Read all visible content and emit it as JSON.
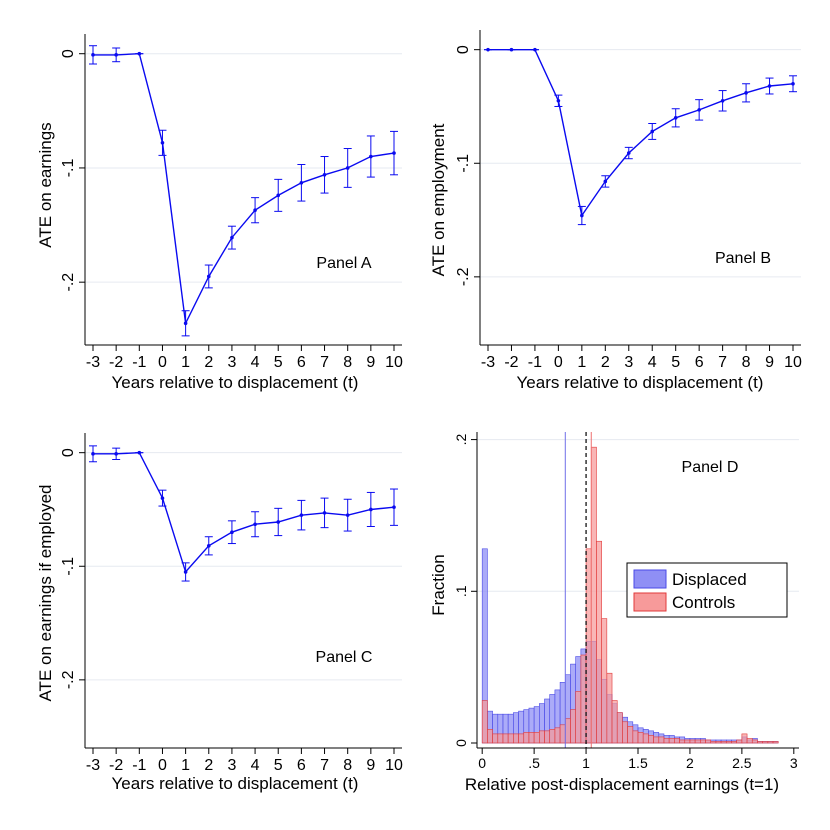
{
  "colors": {
    "series": "#0a0af0",
    "grid": "#e6eaf0",
    "displaced_fill": "#8f8ff5",
    "displaced_stroke": "#4a4ae6",
    "controls_fill": "#f79a9a",
    "controls_stroke": "#e23a3a",
    "vline_displaced": "#7070e8",
    "vline_controls": "#ee7070"
  },
  "chart_data": [
    {
      "type": "line",
      "panel_label": "Panel A",
      "ylabel": "ATE on earnings",
      "xlabel": "Years relative to displacement (t)",
      "x": [
        -3,
        -2,
        -1,
        0,
        1,
        2,
        3,
        4,
        5,
        6,
        7,
        8,
        9,
        10
      ],
      "x_tick_labels": [
        "-3",
        "-2",
        "-1",
        "0",
        "1",
        "2",
        "3",
        "4",
        "5",
        "6",
        "7",
        "8",
        "9",
        "10"
      ],
      "y": [
        -0.001,
        -0.001,
        0.0,
        -0.078,
        -0.236,
        -0.195,
        -0.161,
        -0.137,
        -0.124,
        -0.113,
        -0.106,
        -0.1,
        -0.09,
        -0.087
      ],
      "ci_low": [
        -0.009,
        -0.007,
        0.0,
        -0.089,
        -0.247,
        -0.205,
        -0.171,
        -0.148,
        -0.138,
        -0.129,
        -0.122,
        -0.117,
        -0.108,
        -0.106
      ],
      "ci_high": [
        0.007,
        0.005,
        0.0,
        -0.067,
        -0.225,
        -0.185,
        -0.151,
        -0.126,
        -0.11,
        -0.097,
        -0.09,
        -0.083,
        -0.072,
        -0.068
      ],
      "y_ticks": [
        0,
        -0.1,
        -0.2
      ],
      "y_tick_labels": [
        "0",
        "-.1",
        "-.2"
      ],
      "ylim": [
        -0.255,
        0.005
      ]
    },
    {
      "type": "line",
      "panel_label": "Panel B",
      "ylabel": "ATE on employment",
      "xlabel": "Years relative to displacement (t)",
      "x": [
        -3,
        -2,
        -1,
        0,
        1,
        2,
        3,
        4,
        5,
        6,
        7,
        8,
        9,
        10
      ],
      "x_tick_labels": [
        "-3",
        "-2",
        "-1",
        "0",
        "1",
        "2",
        "3",
        "4",
        "5",
        "6",
        "7",
        "8",
        "9",
        "10"
      ],
      "y": [
        0.0,
        0.0,
        0.0,
        -0.045,
        -0.146,
        -0.116,
        -0.091,
        -0.072,
        -0.06,
        -0.053,
        -0.045,
        -0.038,
        -0.032,
        -0.03
      ],
      "ci_low": [
        0.0,
        0.0,
        0.0,
        -0.05,
        -0.154,
        -0.121,
        -0.096,
        -0.079,
        -0.068,
        -0.062,
        -0.054,
        -0.046,
        -0.039,
        -0.037
      ],
      "ci_high": [
        0.0,
        0.0,
        0.0,
        -0.04,
        -0.138,
        -0.111,
        -0.086,
        -0.065,
        -0.052,
        -0.044,
        -0.036,
        -0.03,
        -0.025,
        -0.023
      ],
      "y_ticks": [
        0,
        -0.1,
        -0.2
      ],
      "y_tick_labels": [
        "0",
        "-.1",
        "-.2"
      ],
      "ylim": [
        -0.26,
        0.005
      ]
    },
    {
      "type": "line",
      "panel_label": "Panel C",
      "ylabel": "ATE on earnings if employed",
      "xlabel": "Years relative to displacement (t)",
      "x": [
        -3,
        -2,
        -1,
        0,
        1,
        2,
        3,
        4,
        5,
        6,
        7,
        8,
        9,
        10
      ],
      "x_tick_labels": [
        "-3",
        "-2",
        "-1",
        "0",
        "1",
        "2",
        "3",
        "4",
        "5",
        "6",
        "7",
        "8",
        "9",
        "10"
      ],
      "y": [
        -0.001,
        -0.001,
        0.0,
        -0.04,
        -0.105,
        -0.082,
        -0.07,
        -0.063,
        -0.061,
        -0.055,
        -0.053,
        -0.055,
        -0.05,
        -0.048
      ],
      "ci_low": [
        -0.008,
        -0.006,
        0.0,
        -0.047,
        -0.113,
        -0.09,
        -0.08,
        -0.074,
        -0.073,
        -0.068,
        -0.066,
        -0.069,
        -0.065,
        -0.064
      ],
      "ci_high": [
        0.006,
        0.004,
        0.0,
        -0.033,
        -0.097,
        -0.074,
        -0.06,
        -0.052,
        -0.049,
        -0.042,
        -0.04,
        -0.041,
        -0.035,
        -0.032
      ],
      "y_ticks": [
        0,
        -0.1,
        -0.2
      ],
      "y_tick_labels": [
        "0",
        "-.1",
        "-.2"
      ],
      "ylim": [
        -0.26,
        0.005
      ]
    },
    {
      "type": "histogram",
      "panel_label": "Panel D",
      "ylabel": "Fraction",
      "xlabel": "Relative post-displacement earnings (t=1)",
      "bin_width": 0.05,
      "x_ticks": [
        0,
        0.5,
        1,
        1.5,
        2,
        2.5,
        3
      ],
      "x_tick_labels": [
        "0",
        ".5",
        "1",
        "1.5",
        "2",
        "2.5",
        "3"
      ],
      "y_ticks": [
        0,
        0.1,
        0.2
      ],
      "y_tick_labels": [
        "0",
        ".1",
        ".2"
      ],
      "xlim": [
        -0.05,
        3.05
      ],
      "ylim": [
        0,
        0.205
      ],
      "vlines": {
        "displaced_median": 0.8,
        "controls_median": 1.05,
        "reference": 1.0
      },
      "legend": [
        "Displaced",
        "Controls"
      ],
      "series": [
        {
          "name": "Displaced",
          "bin_starts": [
            0.0,
            0.05,
            0.1,
            0.15,
            0.2,
            0.25,
            0.3,
            0.35,
            0.4,
            0.45,
            0.5,
            0.55,
            0.6,
            0.65,
            0.7,
            0.75,
            0.8,
            0.85,
            0.9,
            0.95,
            1.0,
            1.05,
            1.1,
            1.15,
            1.2,
            1.25,
            1.3,
            1.35,
            1.4,
            1.45,
            1.5,
            1.55,
            1.6,
            1.65,
            1.7,
            1.75,
            1.8,
            1.85,
            1.9,
            1.95,
            2.0,
            2.05,
            2.1,
            2.15,
            2.2,
            2.25,
            2.3,
            2.35,
            2.4,
            2.45,
            2.5,
            2.55,
            2.6,
            2.65,
            2.7,
            2.75,
            2.8
          ],
          "values": [
            0.128,
            0.021,
            0.019,
            0.019,
            0.019,
            0.019,
            0.02,
            0.021,
            0.022,
            0.023,
            0.024,
            0.026,
            0.029,
            0.032,
            0.035,
            0.04,
            0.045,
            0.052,
            0.057,
            0.062,
            0.067,
            0.067,
            0.055,
            0.042,
            0.032,
            0.026,
            0.02,
            0.017,
            0.014,
            0.012,
            0.01,
            0.009,
            0.008,
            0.007,
            0.006,
            0.005,
            0.005,
            0.004,
            0.004,
            0.003,
            0.003,
            0.003,
            0.003,
            0.002,
            0.002,
            0.002,
            0.002,
            0.002,
            0.002,
            0.002,
            0.004,
            0.002,
            0.003,
            0.001,
            0.001,
            0.001,
            0.001
          ]
        },
        {
          "name": "Controls",
          "bin_starts": [
            0.0,
            0.05,
            0.1,
            0.15,
            0.2,
            0.25,
            0.3,
            0.35,
            0.4,
            0.45,
            0.5,
            0.55,
            0.6,
            0.65,
            0.7,
            0.75,
            0.8,
            0.85,
            0.9,
            0.95,
            1.0,
            1.05,
            1.1,
            1.15,
            1.2,
            1.25,
            1.3,
            1.35,
            1.4,
            1.45,
            1.5,
            1.55,
            1.6,
            1.65,
            1.7,
            1.75,
            1.8,
            1.85,
            1.9,
            1.95,
            2.0,
            2.05,
            2.1,
            2.15,
            2.2,
            2.25,
            2.3,
            2.35,
            2.4,
            2.45,
            2.5,
            2.55,
            2.6,
            2.65,
            2.7,
            2.75,
            2.8
          ],
          "values": [
            0.028,
            0.009,
            0.006,
            0.006,
            0.006,
            0.006,
            0.006,
            0.006,
            0.007,
            0.007,
            0.007,
            0.008,
            0.008,
            0.009,
            0.01,
            0.012,
            0.016,
            0.022,
            0.034,
            0.058,
            0.128,
            0.195,
            0.133,
            0.082,
            0.046,
            0.028,
            0.02,
            0.014,
            0.011,
            0.008,
            0.007,
            0.006,
            0.005,
            0.004,
            0.004,
            0.003,
            0.003,
            0.003,
            0.002,
            0.002,
            0.002,
            0.002,
            0.002,
            0.002,
            0.001,
            0.001,
            0.001,
            0.001,
            0.001,
            0.002,
            0.006,
            0.003,
            0.002,
            0.001,
            0.001,
            0.001,
            0.001
          ]
        }
      ]
    }
  ]
}
